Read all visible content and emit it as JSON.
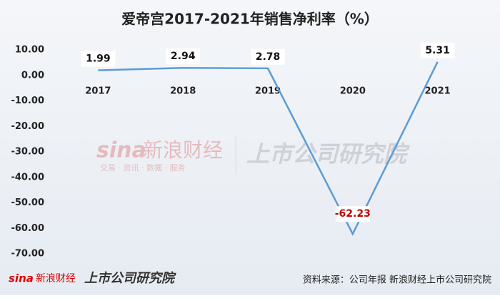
{
  "chart_data": {
    "type": "line",
    "title": "爱帝宫2017-2021年销售净利率（%）",
    "categories": [
      "2017",
      "2018",
      "2019",
      "2020",
      "2021"
    ],
    "series": [
      {
        "name": "销售净利率",
        "color": "#5b9bd5",
        "values": [
          1.99,
          2.94,
          2.78,
          -62.23,
          5.31
        ]
      }
    ],
    "ylim": [
      -70,
      10
    ],
    "yticks": [
      {
        "value": 10,
        "label": "10.00"
      },
      {
        "value": 0,
        "label": "0.00"
      },
      {
        "value": -10,
        "label": "-10.00"
      },
      {
        "value": -20,
        "label": "-20.00"
      },
      {
        "value": -30,
        "label": "-30.00"
      },
      {
        "value": -40,
        "label": "-40.00"
      },
      {
        "value": -50,
        "label": "-50.00"
      },
      {
        "value": -60,
        "label": "-60.00"
      },
      {
        "value": -70,
        "label": "-70.00"
      }
    ],
    "grid": false,
    "source": "资料来源：公司年报 新浪财经上市公司研究院"
  },
  "watermark": {
    "brand": "sina",
    "name": "新浪财经",
    "slogan": "交易 · 资讯 · 数据 · 服务",
    "institute": "上市公司研究院"
  },
  "logo": {
    "brand": "sina",
    "name": "新浪财经",
    "institute": "上市公司研究院"
  }
}
